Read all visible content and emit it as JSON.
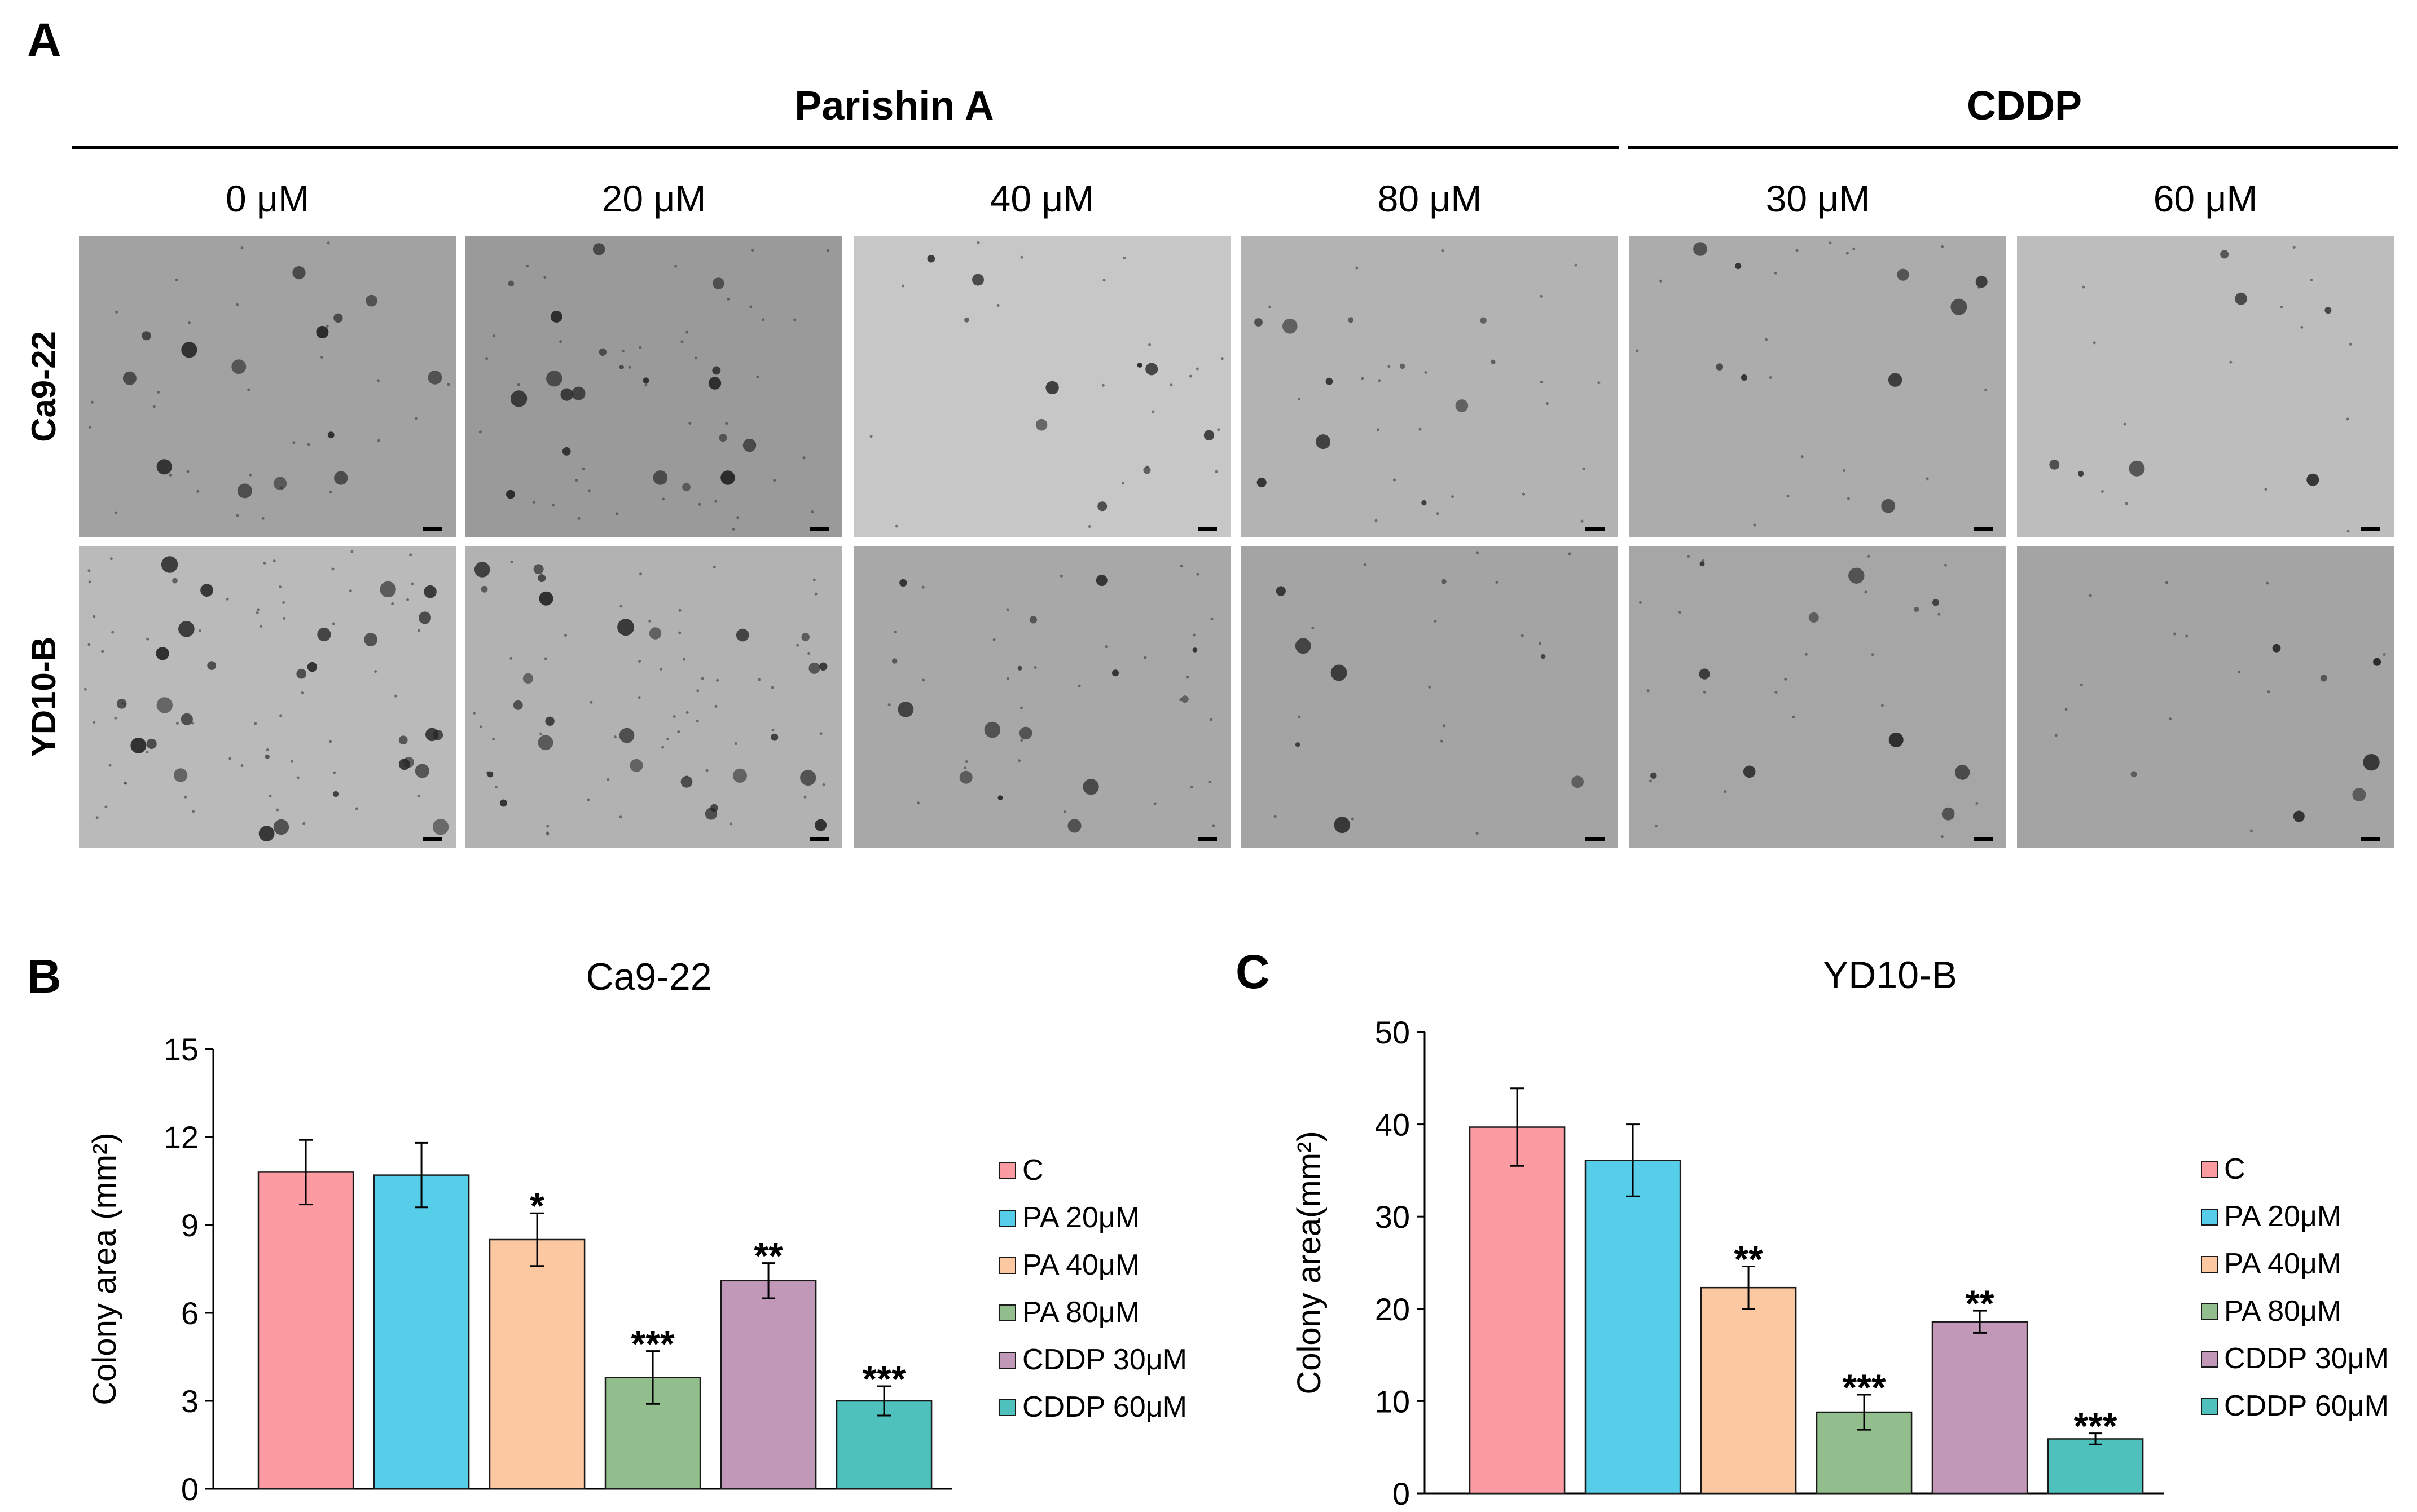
{
  "panel_labels": {
    "a": "A",
    "b": "B",
    "c": "C"
  },
  "panel_a": {
    "group_labels": [
      "Parishin A",
      "CDDP"
    ],
    "doses": [
      "0 μM",
      "20 μM",
      "40 μM",
      "80 μM",
      "30 μM",
      "60 μM"
    ],
    "rows": [
      "Ca9-22",
      "YD10-B"
    ],
    "micrograph_tones": [
      [
        "#a2a2a2",
        "#9a9a9a",
        "#c7c7c7",
        "#b3b3b3",
        "#acacac",
        "#bdbdbd"
      ],
      [
        "#bababa",
        "#b2b2b2",
        "#a8a8a8",
        "#a4a4a4",
        "#a6a6a6",
        "#a4a4a4"
      ]
    ],
    "colony_density": [
      [
        14,
        20,
        10,
        11,
        9,
        7
      ],
      [
        30,
        26,
        15,
        8,
        11,
        7
      ]
    ]
  },
  "chart_data": [
    {
      "type": "bar",
      "title": "Ca9-22",
      "xlabel": "",
      "ylabel": "Colony area (mm²)",
      "ylim": [
        0,
        15
      ],
      "yticks": [
        0,
        3,
        6,
        9,
        12,
        15
      ],
      "tick_labels": [
        "0",
        "3",
        "6",
        "9",
        "12",
        "15"
      ],
      "categories": [
        "C",
        "PA 20μM",
        "PA 40μM",
        "PA 80μM",
        "CDDP 30μM",
        "CDDP 60μM"
      ],
      "values": [
        10.8,
        10.7,
        8.5,
        3.8,
        7.1,
        3.0
      ],
      "errors": [
        1.1,
        1.1,
        0.9,
        0.9,
        0.6,
        0.5
      ],
      "significance": [
        "",
        "",
        "*",
        "***",
        "**",
        "***"
      ],
      "colors": [
        "#fc9ba2",
        "#56cde9",
        "#fcc8a1",
        "#92bd8c",
        "#c298b8",
        "#4fc1bd"
      ],
      "legend": [
        "C",
        "PA 20μM",
        "PA 40μM",
        "PA 80μM",
        "CDDP 30μM",
        "CDDP 60μM"
      ],
      "legend_position": "right",
      "grid": false
    },
    {
      "type": "bar",
      "title": "YD10-B",
      "xlabel": "",
      "ylabel": "Colony area(mm²)",
      "ylim": [
        0,
        50
      ],
      "yticks": [
        0,
        10,
        20,
        30,
        40,
        50
      ],
      "tick_labels": [
        "0",
        "10",
        "20",
        "30",
        "40",
        "50"
      ],
      "categories": [
        "C",
        "PA 20μM",
        "PA 40μM",
        "PA 80μM",
        "CDDP 30μM",
        "CDDP 60μM"
      ],
      "values": [
        39.7,
        36.1,
        22.3,
        8.8,
        18.6,
        5.9
      ],
      "errors": [
        4.2,
        3.9,
        2.3,
        1.9,
        1.2,
        0.6
      ],
      "significance": [
        "",
        "",
        "**",
        "***",
        "**",
        "***"
      ],
      "colors": [
        "#fc9ba2",
        "#56cde9",
        "#fcc8a1",
        "#92bd8c",
        "#c298b8",
        "#4fc1bd"
      ],
      "legend": [
        "C",
        "PA 20μM",
        "PA 40μM",
        "PA 80μM",
        "CDDP 30μM",
        "CDDP 60μM"
      ],
      "legend_position": "right",
      "grid": false
    }
  ]
}
